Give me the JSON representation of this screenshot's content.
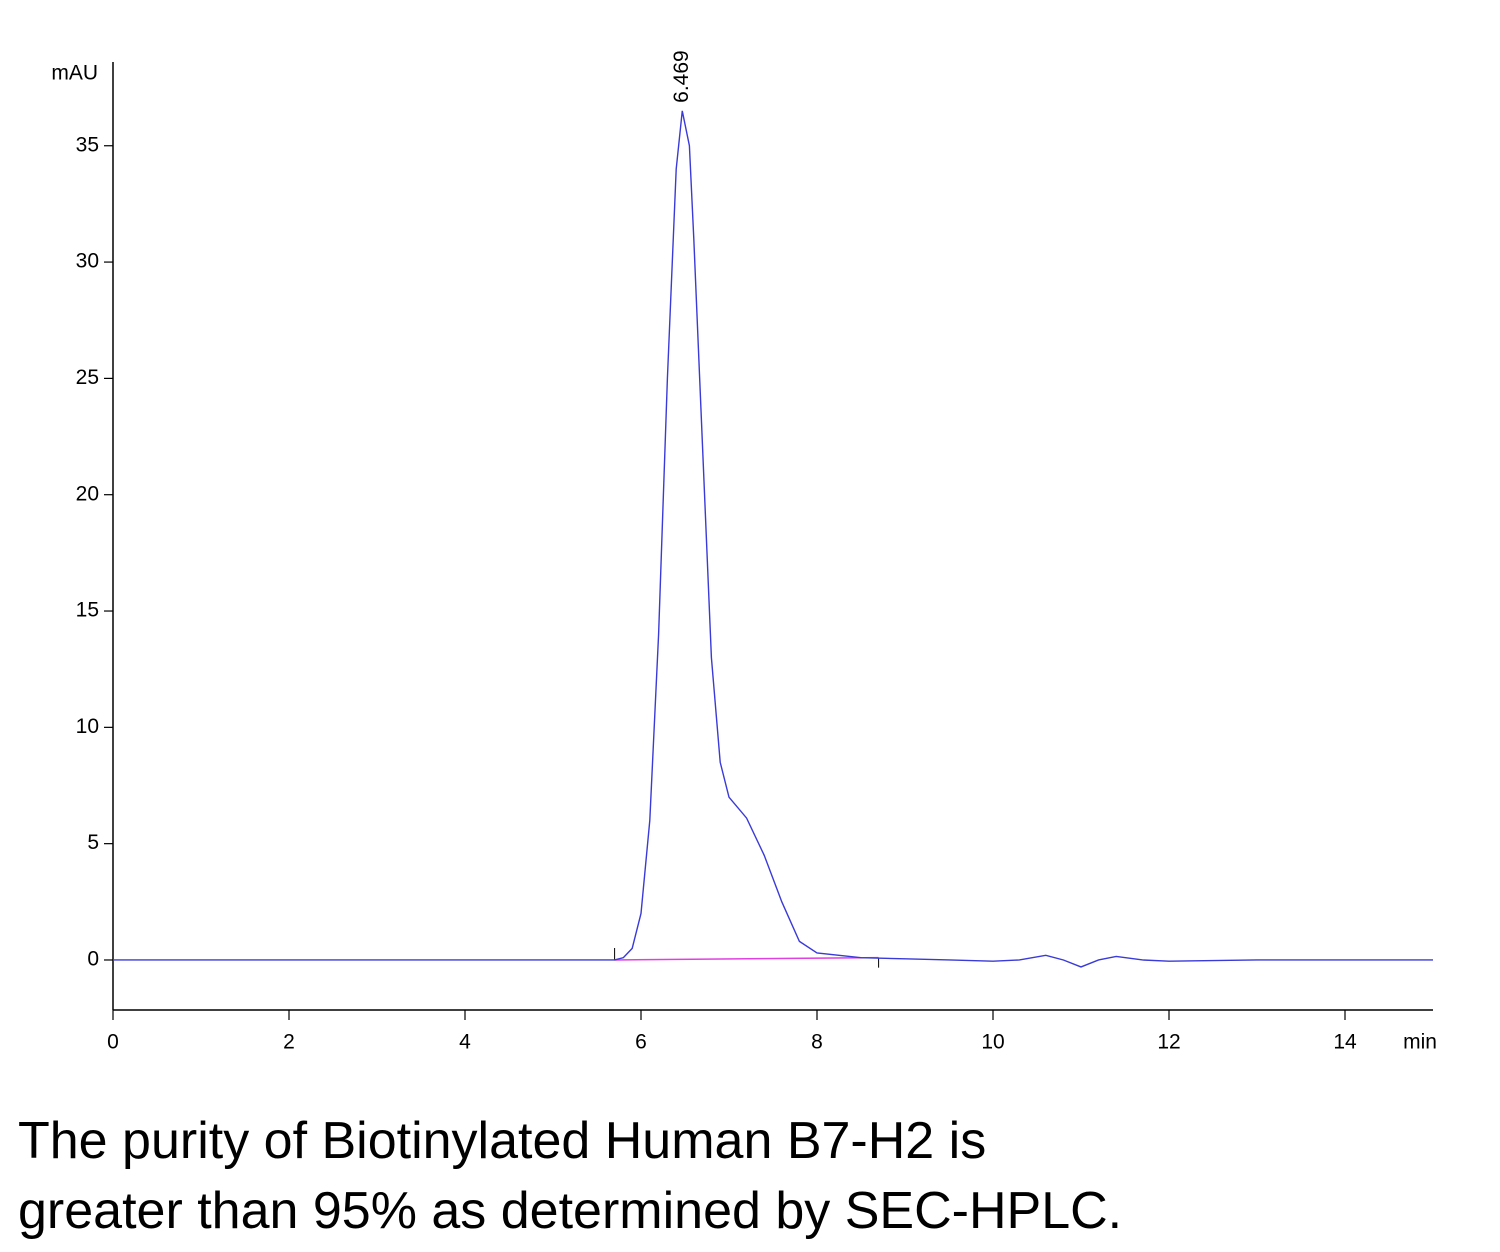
{
  "chart_data": {
    "type": "line",
    "x_label": "min",
    "y_label": "mAU",
    "xlim": [
      0,
      15
    ],
    "ylim": [
      -2.15,
      38.6
    ],
    "xticks": [
      0,
      2,
      4,
      6,
      8,
      10,
      12,
      14
    ],
    "yticks": [
      0,
      5,
      10,
      15,
      20,
      25,
      30,
      35
    ],
    "x": [
      0,
      1,
      2,
      3,
      4,
      5,
      5.7,
      5.8,
      5.9,
      6.0,
      6.1,
      6.2,
      6.3,
      6.4,
      6.469,
      6.55,
      6.6,
      6.7,
      6.8,
      6.9,
      7.0,
      7.2,
      7.4,
      7.6,
      7.8,
      8.0,
      8.5,
      9.0,
      9.5,
      10.0,
      10.3,
      10.6,
      10.8,
      11.0,
      11.2,
      11.4,
      11.7,
      12.0,
      13.0,
      14.0,
      15.0
    ],
    "series": [
      {
        "color": "#3a3ad8",
        "values": [
          0,
          0,
          0,
          0,
          0,
          0,
          0,
          0.1,
          0.5,
          2.0,
          6,
          14,
          25,
          34,
          36.5,
          35,
          31,
          22,
          13,
          8.5,
          7,
          6.1,
          4.5,
          2.5,
          0.8,
          0.3,
          0.1,
          0.05,
          0,
          -0.05,
          0,
          0.2,
          0,
          -0.3,
          0,
          0.15,
          0,
          -0.05,
          0,
          0,
          0
        ]
      }
    ],
    "baseline": {
      "color": "#e040e0",
      "x": [
        5.7,
        8.7
      ],
      "values": [
        0,
        0.1
      ]
    },
    "peak_label": {
      "text": "6.469",
      "x": 6.469,
      "y": 36.5
    },
    "caption": [
      "The purity of Biotinylated Human B7-H2 is",
      "greater than 95% as determined by SEC-HPLC."
    ]
  }
}
